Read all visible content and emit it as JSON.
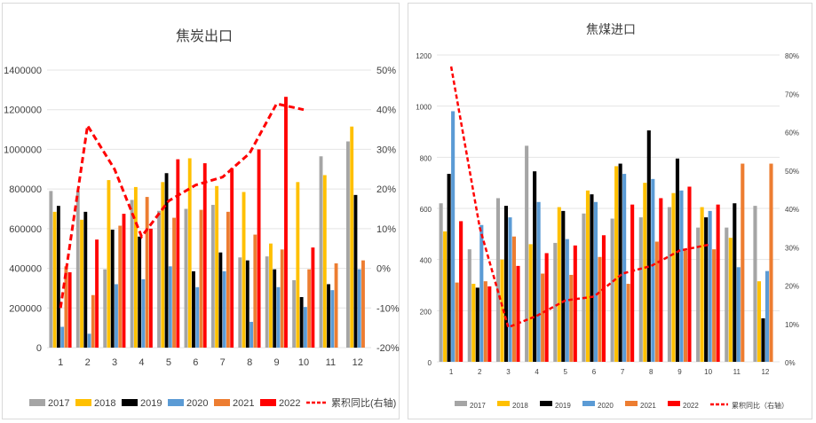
{
  "colors": {
    "2017": "#a5a5a5",
    "2018": "#ffc000",
    "2019": "#000000",
    "2020": "#5b9bd5",
    "2021": "#ed7d31",
    "2022": "#ff0000",
    "cumulative": "#ff0000",
    "grid": "#e4e4e4"
  },
  "chart_data": [
    {
      "type": "bar",
      "title": "焦炭出口",
      "categories": [
        "1",
        "2",
        "3",
        "4",
        "5",
        "6",
        "7",
        "8",
        "9",
        "10",
        "11",
        "12"
      ],
      "ylim": [
        0,
        1400000
      ],
      "y_ticks": [
        "0",
        "200000",
        "400000",
        "600000",
        "800000",
        "1000000",
        "1200000",
        "1400000"
      ],
      "y2lim": [
        -20,
        50
      ],
      "y2_ticks": [
        "-20%",
        "-10%",
        "0%",
        "10%",
        "20%",
        "30%",
        "40%",
        "50%"
      ],
      "grid": true,
      "legend_position": "bottom",
      "series": [
        {
          "name": "2017",
          "values": [
            790000,
            790000,
            395000,
            745000,
            690000,
            700000,
            720000,
            455000,
            460000,
            340000,
            965000,
            1040000
          ]
        },
        {
          "name": "2018",
          "values": [
            685000,
            645000,
            845000,
            810000,
            835000,
            955000,
            815000,
            785000,
            525000,
            835000,
            870000,
            1115000
          ]
        },
        {
          "name": "2019",
          "values": [
            715000,
            685000,
            595000,
            560000,
            880000,
            385000,
            480000,
            440000,
            395000,
            255000,
            320000,
            770000
          ]
        },
        {
          "name": "2020",
          "values": [
            105000,
            70000,
            320000,
            345000,
            410000,
            305000,
            385000,
            130000,
            305000,
            205000,
            290000,
            395000
          ]
        },
        {
          "name": "2021",
          "values": [
            410000,
            265000,
            615000,
            760000,
            655000,
            695000,
            685000,
            570000,
            495000,
            395000,
            425000,
            440000
          ]
        },
        {
          "name": "2022",
          "values": [
            380000,
            545000,
            675000,
            600000,
            950000,
            930000,
            905000,
            1000000,
            1265000,
            505000,
            null,
            null
          ]
        },
        {
          "name": "累积同比(右轴)",
          "type": "line",
          "axis": "right",
          "values": [
            -10,
            36,
            25,
            8,
            17,
            21,
            23,
            29,
            41.5,
            40,
            null,
            null
          ]
        }
      ]
    },
    {
      "type": "bar",
      "title": "焦煤进口",
      "categories": [
        "1",
        "2",
        "3",
        "4",
        "5",
        "6",
        "7",
        "8",
        "9",
        "10",
        "11",
        "12"
      ],
      "ylim": [
        0,
        1200
      ],
      "y_ticks": [
        "0",
        "200",
        "400",
        "600",
        "800",
        "1000",
        "1200"
      ],
      "y2lim": [
        0,
        80
      ],
      "y2_ticks": [
        "0%",
        "10%",
        "20%",
        "30%",
        "40%",
        "50%",
        "60%",
        "70%",
        "80%"
      ],
      "grid": true,
      "legend_position": "bottom",
      "series": [
        {
          "name": "2017",
          "values": [
            620,
            440,
            640,
            845,
            465,
            580,
            560,
            565,
            605,
            525,
            525,
            610
          ]
        },
        {
          "name": "2018",
          "values": [
            510,
            305,
            400,
            460,
            605,
            670,
            765,
            700,
            660,
            605,
            485,
            315
          ]
        },
        {
          "name": "2019",
          "values": [
            735,
            290,
            610,
            745,
            590,
            655,
            775,
            905,
            795,
            565,
            620,
            170
          ]
        },
        {
          "name": "2020",
          "values": [
            980,
            535,
            565,
            625,
            480,
            625,
            735,
            715,
            670,
            590,
            370,
            355
          ]
        },
        {
          "name": "2021",
          "values": [
            310,
            315,
            490,
            345,
            340,
            410,
            305,
            470,
            435,
            440,
            775,
            775
          ]
        },
        {
          "name": "2022",
          "values": [
            550,
            295,
            375,
            425,
            455,
            495,
            615,
            640,
            685,
            615,
            null,
            null
          ]
        },
        {
          "name": "累积同比（右轴）",
          "type": "line",
          "axis": "right",
          "values": [
            77,
            35,
            9,
            12,
            16,
            17,
            23,
            25,
            29,
            30.5,
            null,
            null
          ]
        }
      ]
    }
  ]
}
